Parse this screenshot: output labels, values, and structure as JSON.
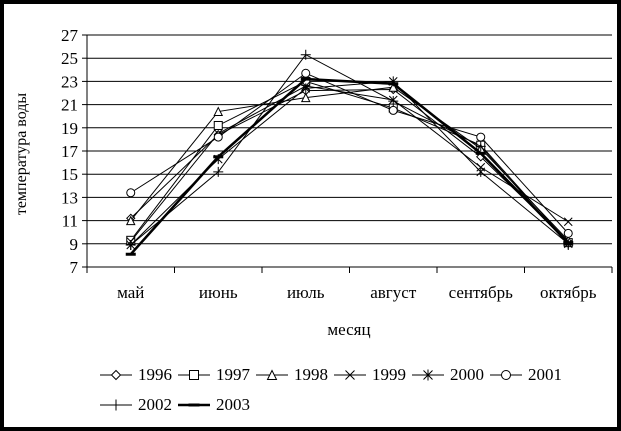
{
  "frame": {
    "background": "#ffffff",
    "border_color": "#000000",
    "line_color": "#000000",
    "text_color": "#000000"
  },
  "chart_data": {
    "type": "line",
    "title": "",
    "xlabel": "месяц",
    "ylabel": "температура воды",
    "categories": [
      "май",
      "июнь",
      "июль",
      "август",
      "сентябрь",
      "октябрь"
    ],
    "ylim": [
      7,
      27
    ],
    "yticks": [
      27,
      25,
      23,
      21,
      19,
      17,
      15,
      13,
      11,
      9,
      7
    ],
    "grid": true,
    "legend_position": "bottom",
    "series": [
      {
        "name": "1996",
        "marker": "diamond",
        "values": [
          11.2,
          18.4,
          22.2,
          22.3,
          16.5,
          9.2
        ]
      },
      {
        "name": "1997",
        "marker": "square",
        "values": [
          9.3,
          19.2,
          23.0,
          20.7,
          17.5,
          9.1
        ]
      },
      {
        "name": "1998",
        "marker": "triangle",
        "values": [
          11.0,
          20.4,
          21.6,
          22.5,
          17.2,
          9.3
        ]
      },
      {
        "name": "1999",
        "marker": "x",
        "values": [
          9.2,
          18.5,
          22.6,
          21.4,
          15.6,
          10.9
        ]
      },
      {
        "name": "2000",
        "marker": "star",
        "values": [
          8.9,
          16.3,
          22.4,
          23.0,
          15.2,
          9.0
        ]
      },
      {
        "name": "2001",
        "marker": "circle",
        "values": [
          13.4,
          18.2,
          23.7,
          20.5,
          18.2,
          9.9
        ]
      },
      {
        "name": "2002",
        "marker": "plus",
        "values": [
          8.9,
          15.2,
          25.3,
          21.3,
          17.4,
          8.9
        ]
      },
      {
        "name": "2003",
        "marker": "dash",
        "values": [
          8.1,
          16.5,
          23.2,
          22.8,
          16.8,
          9.1
        ]
      }
    ],
    "thick_series": "2003"
  }
}
